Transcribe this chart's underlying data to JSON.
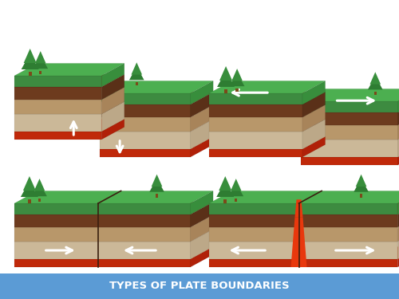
{
  "title": "TYPES OF PLATE BOUNDARIES",
  "title_bg_color": "#5b9bd5",
  "title_text_color": "#ffffff",
  "background_color": "#ffffff",
  "colors": {
    "grass_top": "#4caf50",
    "grass_front": "#3d8b40",
    "grass_side": "#388e3c",
    "dark_soil_top": "#7b4a22",
    "dark_soil_front": "#6d3b1e",
    "dark_soil_side": "#5a3018",
    "mid_soil_top": "#c4a882",
    "mid_soil_front": "#b8976a",
    "mid_soil_side": "#a8845a",
    "light_soil_top": "#d8c4a8",
    "light_soil_front": "#cbb898",
    "light_soil_side": "#bca888",
    "magma_top": "#e8380d",
    "magma_front": "#c0290a",
    "magma_side": "#b02008",
    "crack": "#3a2010",
    "arrow": "#ffffff"
  }
}
